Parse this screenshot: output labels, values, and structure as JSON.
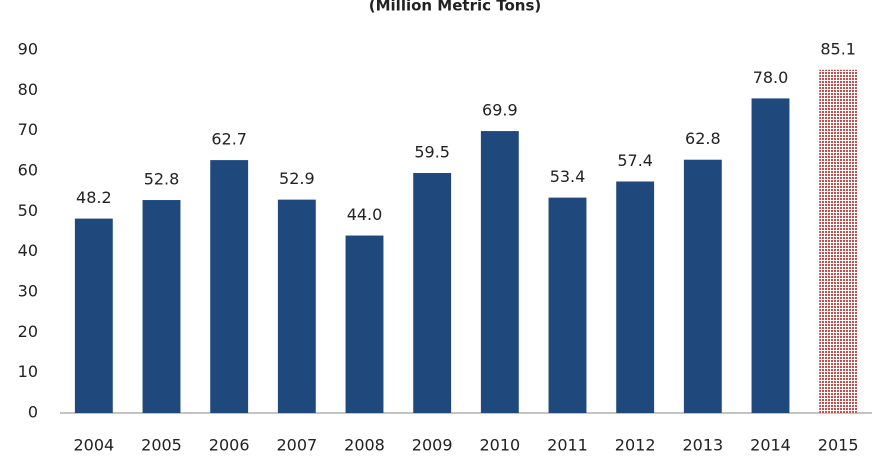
{
  "chart_data": {
    "type": "bar",
    "title": "(Million Metric Tons)",
    "categories": [
      "2004",
      "2005",
      "2006",
      "2007",
      "2008",
      "2009",
      "2010",
      "2011",
      "2012",
      "2013",
      "2014",
      "2015"
    ],
    "values": [
      48.2,
      52.8,
      62.7,
      52.9,
      44.0,
      59.5,
      69.9,
      53.4,
      57.4,
      62.8,
      78.0,
      85.1
    ],
    "value_labels": [
      "48.2",
      "52.8",
      "62.7",
      "52.9",
      "44.0",
      "59.5",
      "69.9",
      "53.4",
      "57.4",
      "62.8",
      "78.0",
      "85.1"
    ],
    "colors": [
      "#1f497d",
      "#1f497d",
      "#1f497d",
      "#1f497d",
      "#1f497d",
      "#1f497d",
      "#1f497d",
      "#1f497d",
      "#1f497d",
      "#1f497d",
      "#1f497d",
      "#c0504d"
    ],
    "bar_styles": [
      "solid",
      "solid",
      "solid",
      "solid",
      "solid",
      "solid",
      "solid",
      "solid",
      "solid",
      "solid",
      "solid",
      "hatched"
    ],
    "ylim": [
      0,
      90
    ],
    "yticks": [
      0,
      10,
      20,
      30,
      40,
      50,
      60,
      70,
      80,
      90
    ],
    "grid": false
  }
}
